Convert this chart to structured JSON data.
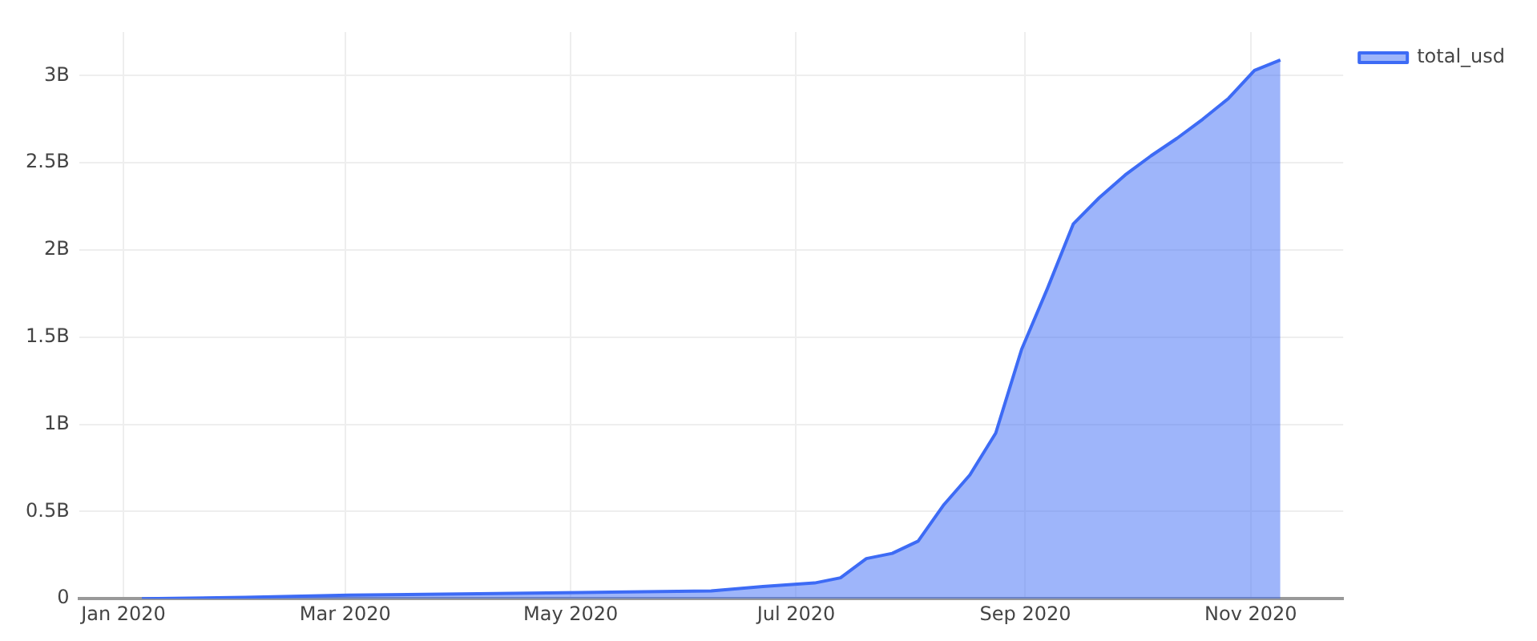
{
  "chart_data": {
    "type": "area",
    "x": [
      "2020-01-06",
      "2020-02-03",
      "2020-03-02",
      "2020-04-06",
      "2020-05-04",
      "2020-06-08",
      "2020-06-22",
      "2020-07-06",
      "2020-07-13",
      "2020-07-20",
      "2020-07-27",
      "2020-08-03",
      "2020-08-10",
      "2020-08-17",
      "2020-08-24",
      "2020-08-31",
      "2020-09-07",
      "2020-09-14",
      "2020-09-21",
      "2020-09-28",
      "2020-10-05",
      "2020-10-12",
      "2020-10-19",
      "2020-10-26",
      "2020-11-02",
      "2020-11-09"
    ],
    "series": [
      {
        "name": "total_usd",
        "color": "#3d6bf5",
        "values": [
          0,
          8000000,
          20000000,
          28000000,
          35000000,
          45000000,
          70000000,
          90000000,
          120000000,
          230000000,
          260000000,
          330000000,
          540000000,
          710000000,
          950000000,
          1430000000,
          1780000000,
          2150000000,
          2300000000,
          2430000000,
          2540000000,
          2640000000,
          2750000000,
          2870000000,
          3030000000,
          3090000000
        ]
      }
    ],
    "xlim": [
      "2019-12-20",
      "2020-11-26"
    ],
    "xticks": [
      {
        "value": "2020-01",
        "label": "Jan 2020"
      },
      {
        "value": "2020-03",
        "label": "Mar 2020"
      },
      {
        "value": "2020-05",
        "label": "May 2020"
      },
      {
        "value": "2020-07",
        "label": "Jul 2020"
      },
      {
        "value": "2020-09",
        "label": "Sep 2020"
      },
      {
        "value": "2020-11",
        "label": "Nov 2020"
      }
    ],
    "ylim": [
      0,
      3250000000
    ],
    "yticks": [
      0,
      {
        "value": 500000000,
        "label": "0.5B"
      },
      {
        "value": 1000000000,
        "label": "1B"
      },
      {
        "value": 1500000000,
        "label": "1.5B"
      },
      {
        "value": 2000000000,
        "label": "2B"
      },
      {
        "value": 2500000000,
        "label": "2.5B"
      },
      {
        "value": 3000000000,
        "label": "3B"
      }
    ],
    "grid": true,
    "legend": "top right"
  }
}
